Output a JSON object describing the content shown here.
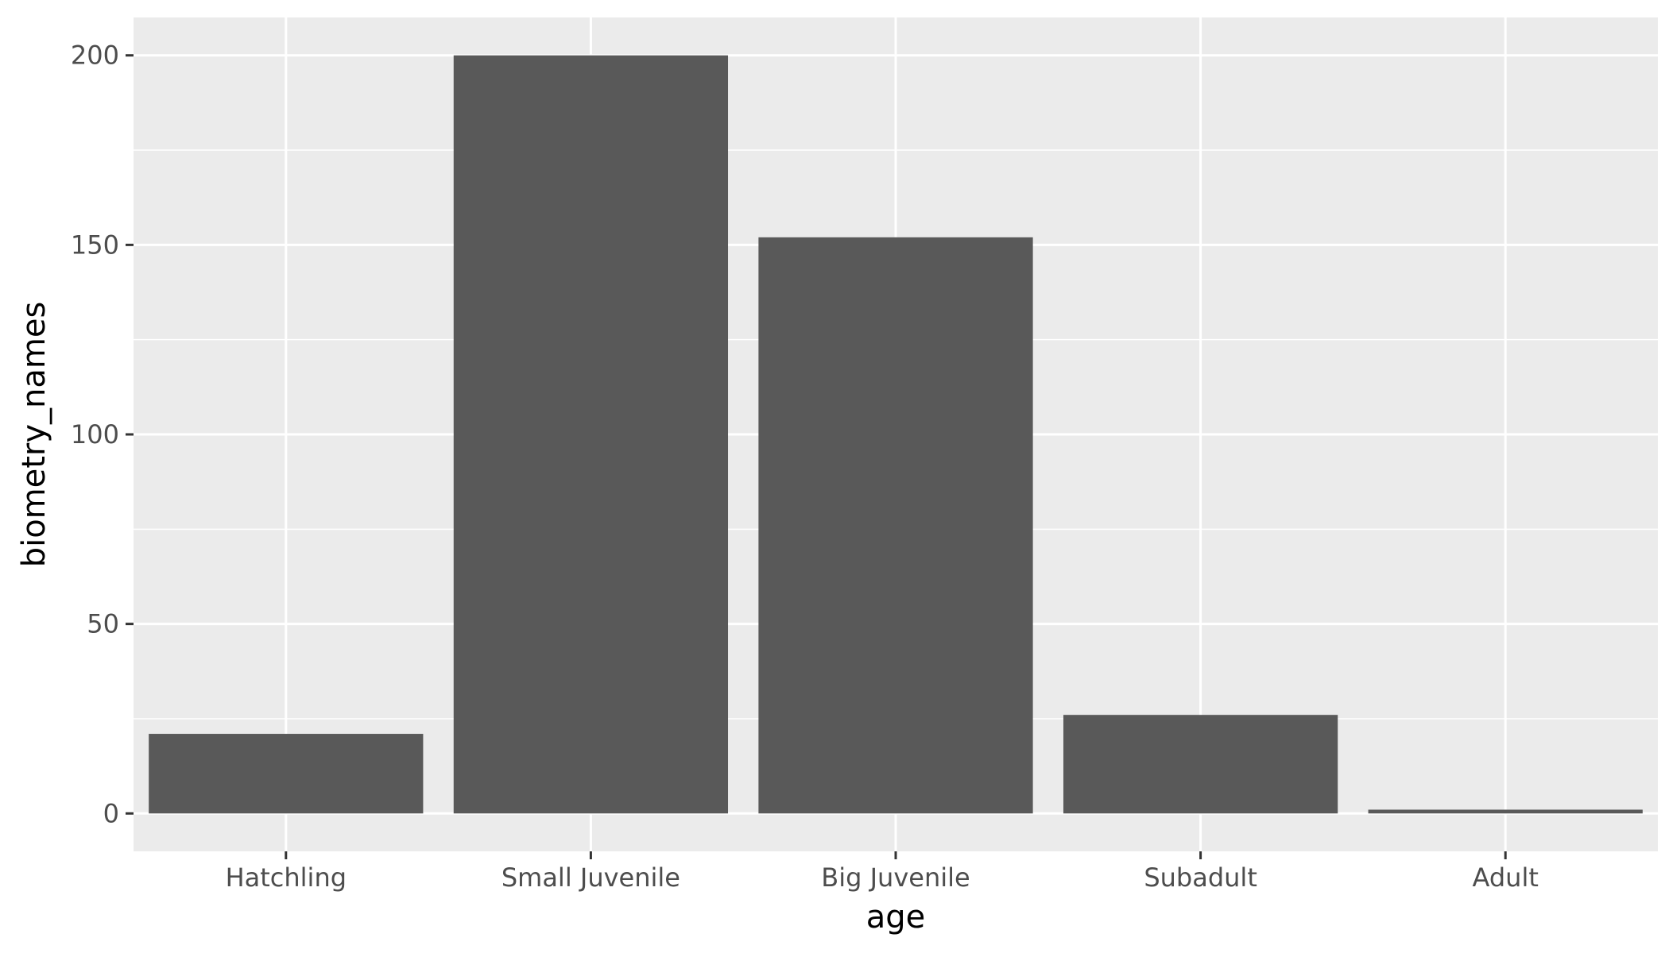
{
  "chart_data": {
    "type": "bar",
    "categories": [
      "Hatchling",
      "Small Juvenile",
      "Big Juvenile",
      "Subadult",
      "Adult"
    ],
    "values": [
      21,
      200,
      152,
      26,
      1
    ],
    "xlabel": "age",
    "ylabel": "biometry_names",
    "ylim": [
      -10,
      210
    ],
    "yticks": [
      0,
      50,
      100,
      150,
      200
    ],
    "grid": true,
    "legend": "none",
    "colors": {
      "bar": "#595959",
      "panel": "#ebebeb",
      "grid": "#ffffff",
      "tick": "#333333"
    }
  }
}
